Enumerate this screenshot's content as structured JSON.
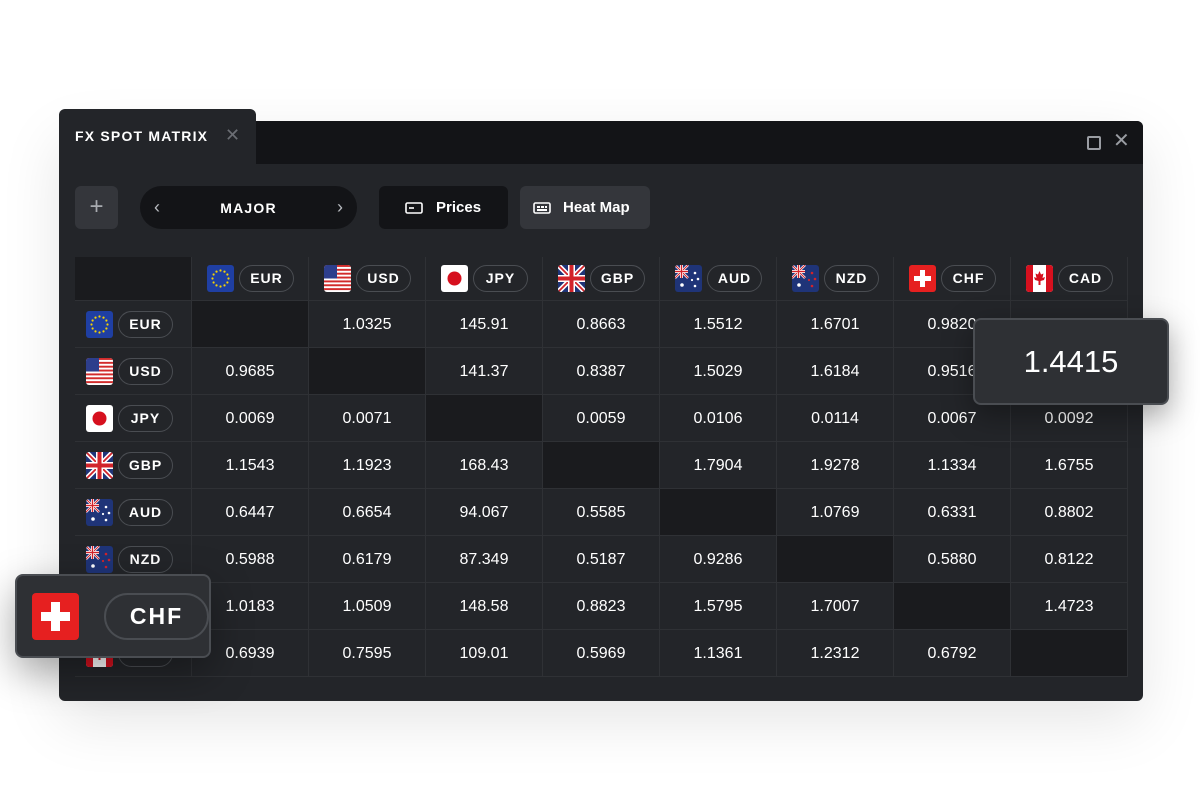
{
  "window": {
    "tab_title": "FX SPOT MATRIX",
    "close_glyph": "✕",
    "max_glyph": "",
    "win_close_glyph": "✕"
  },
  "toolbar": {
    "add_glyph": "+",
    "pager": {
      "label": "MAJOR",
      "prev": "‹",
      "next": "›"
    },
    "prices_label": "Prices",
    "heatmap_label": "Heat Map"
  },
  "currencies": [
    {
      "code": "EUR",
      "flag": "eu-flag-icon"
    },
    {
      "code": "USD",
      "flag": "us-flag-icon"
    },
    {
      "code": "JPY",
      "flag": "jp-flag-icon"
    },
    {
      "code": "GBP",
      "flag": "gb-flag-icon"
    },
    {
      "code": "AUD",
      "flag": "au-flag-icon"
    },
    {
      "code": "NZD",
      "flag": "nz-flag-icon"
    },
    {
      "code": "CHF",
      "flag": "ch-flag-icon"
    },
    {
      "code": "CAD",
      "flag": "ca-flag-icon"
    }
  ],
  "matrix": [
    [
      "",
      "1.0325",
      "145.91",
      "0.8663",
      "1.5512",
      "1.6701",
      "0.9820",
      ""
    ],
    [
      "0.9685",
      "",
      "141.37",
      "0.8387",
      "1.5029",
      "1.6184",
      "0.9516",
      ""
    ],
    [
      "0.0069",
      "0.0071",
      "",
      "0.0059",
      "0.0106",
      "0.0114",
      "0.0067",
      "0.0092"
    ],
    [
      "1.1543",
      "1.1923",
      "168.43",
      "",
      "1.7904",
      "1.9278",
      "1.1334",
      "1.6755"
    ],
    [
      "0.6447",
      "0.6654",
      "94.067",
      "0.5585",
      "",
      "1.0769",
      "0.6331",
      "0.8802"
    ],
    [
      "0.5988",
      "0.6179",
      "87.349",
      "0.5187",
      "0.9286",
      "",
      "0.5880",
      "0.8122"
    ],
    [
      "1.0183",
      "1.0509",
      "148.58",
      "0.8823",
      "1.5795",
      "1.7007",
      "",
      "1.4723"
    ],
    [
      "0.6939",
      "0.7595",
      "109.01",
      "0.5969",
      "1.1361",
      "1.2312",
      "0.6792",
      ""
    ]
  ],
  "popup_value": "1.4415",
  "callout": {
    "code": "CHF",
    "flag": "ch-flag-icon"
  },
  "colors": {
    "background": "#232529",
    "titlebar": "#131417",
    "chf_red": "#e62020"
  }
}
